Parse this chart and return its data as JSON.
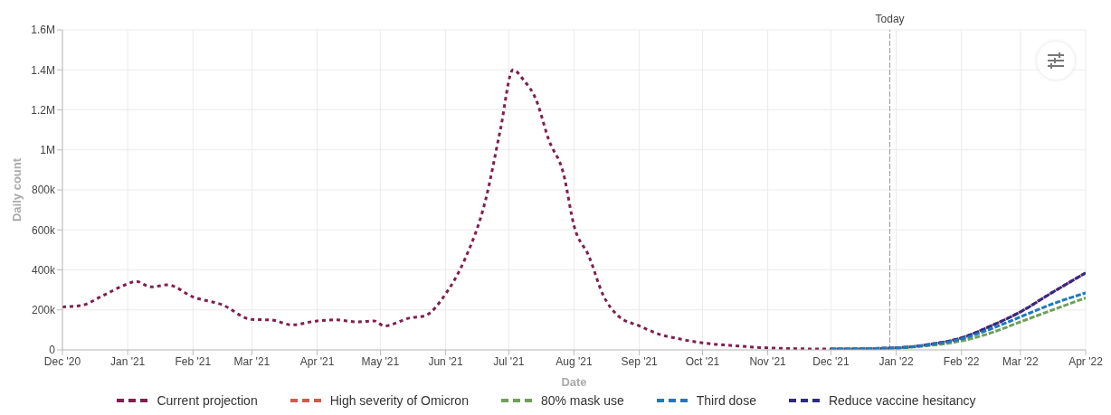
{
  "chart_data": {
    "type": "line",
    "xlabel": "Date",
    "ylabel": "Daily count",
    "xlim": [
      "2020-12-01",
      "2022-04-01"
    ],
    "xticks": [
      {
        "value": "2020-12-01",
        "label": "Dec '20"
      },
      {
        "value": "2021-01-01",
        "label": "Jan '21"
      },
      {
        "value": "2021-02-01",
        "label": "Feb '21"
      },
      {
        "value": "2021-03-01",
        "label": "Mar '21"
      },
      {
        "value": "2021-04-01",
        "label": "Apr '21"
      },
      {
        "value": "2021-05-01",
        "label": "May '21"
      },
      {
        "value": "2021-06-01",
        "label": "Jun '21"
      },
      {
        "value": "2021-07-01",
        "label": "Jul '21"
      },
      {
        "value": "2021-08-01",
        "label": "Aug '21"
      },
      {
        "value": "2021-09-01",
        "label": "Sep '21"
      },
      {
        "value": "2021-10-01",
        "label": "Oct '21"
      },
      {
        "value": "2021-11-01",
        "label": "Nov '21"
      },
      {
        "value": "2021-12-01",
        "label": "Dec '21"
      },
      {
        "value": "2022-01-01",
        "label": "Jan '22"
      },
      {
        "value": "2022-02-01",
        "label": "Feb '22"
      },
      {
        "value": "2022-03-01",
        "label": "Mar '22"
      },
      {
        "value": "2022-04-01",
        "label": "Apr '22"
      }
    ],
    "ylim": [
      0,
      1600000
    ],
    "yticks": [
      0,
      {
        "value": 200000,
        "label": "200k"
      },
      {
        "value": 400000,
        "label": "400k"
      },
      {
        "value": 600000,
        "label": "600k"
      },
      {
        "value": 800000,
        "label": "800k"
      },
      {
        "value": 1000000,
        "label": "1M"
      },
      {
        "value": 1200000,
        "label": "1.2M"
      },
      {
        "value": 1400000,
        "label": "1.4M"
      },
      {
        "value": 1600000,
        "label": "1.6M"
      }
    ],
    "grid": true,
    "legend": "bottom",
    "marker": "none",
    "ref_lines": [
      {
        "axis": "x",
        "value": "2021-12-29",
        "label": "Today",
        "color": "#999999",
        "line_style": "dashed"
      }
    ],
    "series": [
      {
        "name": "Current projection",
        "color": "#7f1f4f",
        "line_style": "dotted",
        "x": [
          "2020-12-01",
          "2020-12-10",
          "2020-12-20",
          "2021-01-01",
          "2021-01-05",
          "2021-01-12",
          "2021-01-20",
          "2021-02-01",
          "2021-02-15",
          "2021-03-01",
          "2021-03-10",
          "2021-03-20",
          "2021-04-01",
          "2021-04-10",
          "2021-04-20",
          "2021-04-28",
          "2021-05-03",
          "2021-05-15",
          "2021-05-22",
          "2021-06-01",
          "2021-06-10",
          "2021-06-20",
          "2021-06-27",
          "2021-07-03",
          "2021-07-08",
          "2021-07-14",
          "2021-07-20",
          "2021-07-27",
          "2021-08-01",
          "2021-08-08",
          "2021-08-15",
          "2021-08-22",
          "2021-09-01",
          "2021-09-10",
          "2021-09-20",
          "2021-10-01",
          "2021-10-15",
          "2021-11-01",
          "2021-11-15",
          "2021-12-01",
          "2021-12-15",
          "2022-01-01",
          "2022-01-15",
          "2022-02-01",
          "2022-02-15",
          "2022-03-01",
          "2022-03-15",
          "2022-04-01"
        ],
        "values": [
          215000,
          222000,
          270000,
          330000,
          343000,
          315000,
          325000,
          265000,
          225000,
          152000,
          150000,
          125000,
          145000,
          150000,
          140000,
          145000,
          120000,
          160000,
          170000,
          280000,
          450000,
          750000,
          1100000,
          1400000,
          1350000,
          1250000,
          1050000,
          880000,
          620000,
          470000,
          270000,
          170000,
          120000,
          80000,
          55000,
          35000,
          22000,
          10000,
          6000,
          4000,
          5000,
          10000,
          25000,
          60000,
          120000,
          190000,
          280000,
          385000
        ]
      },
      {
        "name": "High severity of Omicron",
        "color": "#e0534a",
        "line_style": "dashed"
      },
      {
        "name": "80% mask use",
        "color": "#6fa05a",
        "line_style": "dashed",
        "x": [
          "2021-12-01",
          "2022-01-01",
          "2022-01-15",
          "2022-02-01",
          "2022-02-15",
          "2022-03-01",
          "2022-03-15",
          "2022-04-01"
        ],
        "values": [
          4000,
          9000,
          20000,
          45000,
          85000,
          140000,
          195000,
          260000
        ]
      },
      {
        "name": "Third dose",
        "color": "#1a7abf",
        "line_style": "dashed",
        "x": [
          "2021-12-01",
          "2022-01-01",
          "2022-01-15",
          "2022-02-01",
          "2022-02-15",
          "2022-03-01",
          "2022-03-15",
          "2022-04-01"
        ],
        "values": [
          4000,
          10000,
          23000,
          55000,
          105000,
          165000,
          225000,
          285000
        ]
      },
      {
        "name": "Reduce vaccine hesitancy",
        "color": "#2e2a85",
        "line_style": "dashed",
        "x": [
          "2021-12-01",
          "2022-01-01",
          "2022-01-15",
          "2022-02-01",
          "2022-02-15",
          "2022-03-01",
          "2022-03-15",
          "2022-04-01"
        ],
        "values": [
          4000,
          10000,
          25000,
          60000,
          120000,
          190000,
          280000,
          385000
        ]
      }
    ]
  }
}
